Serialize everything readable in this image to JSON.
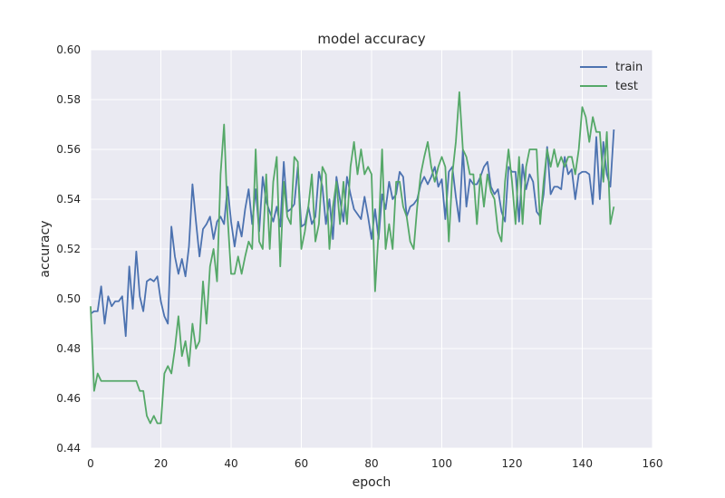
{
  "chart_data": {
    "type": "line",
    "title": "model accuracy",
    "xlabel": "epoch",
    "ylabel": "accuracy",
    "xlim": [
      0,
      160
    ],
    "ylim": [
      0.44,
      0.6
    ],
    "xticks": [
      "0",
      "20",
      "40",
      "60",
      "80",
      "100",
      "120",
      "140",
      "160"
    ],
    "yticks": [
      "0.44",
      "0.46",
      "0.48",
      "0.50",
      "0.52",
      "0.54",
      "0.56",
      "0.58",
      "0.60"
    ],
    "grid": true,
    "legend_position": "top-right",
    "background": "#eaeaf2",
    "series": [
      {
        "name": "train",
        "color": "#4c72b0",
        "values": [
          0.494,
          0.495,
          0.495,
          0.505,
          0.49,
          0.501,
          0.497,
          0.499,
          0.499,
          0.501,
          0.485,
          0.513,
          0.496,
          0.519,
          0.501,
          0.495,
          0.507,
          0.508,
          0.507,
          0.509,
          0.499,
          0.493,
          0.49,
          0.529,
          0.517,
          0.51,
          0.516,
          0.509,
          0.521,
          0.546,
          0.531,
          0.517,
          0.528,
          0.53,
          0.533,
          0.524,
          0.531,
          0.533,
          0.53,
          0.545,
          0.531,
          0.521,
          0.531,
          0.525,
          0.536,
          0.544,
          0.53,
          0.544,
          0.527,
          0.549,
          0.539,
          0.535,
          0.531,
          0.537,
          0.529,
          0.555,
          0.535,
          0.536,
          0.538,
          0.553,
          0.529,
          0.53,
          0.537,
          0.53,
          0.533,
          0.551,
          0.545,
          0.53,
          0.54,
          0.524,
          0.549,
          0.54,
          0.531,
          0.549,
          0.542,
          0.536,
          0.534,
          0.532,
          0.541,
          0.533,
          0.524,
          0.536,
          0.524,
          0.542,
          0.536,
          0.547,
          0.54,
          0.542,
          0.551,
          0.549,
          0.533,
          0.537,
          0.538,
          0.54,
          0.546,
          0.549,
          0.546,
          0.549,
          0.553,
          0.545,
          0.548,
          0.532,
          0.551,
          0.553,
          0.541,
          0.531,
          0.56,
          0.537,
          0.548,
          0.546,
          0.546,
          0.549,
          0.553,
          0.555,
          0.545,
          0.542,
          0.544,
          0.535,
          0.531,
          0.553,
          0.551,
          0.551,
          0.531,
          0.554,
          0.544,
          0.55,
          0.547,
          0.535,
          0.533,
          0.542,
          0.561,
          0.542,
          0.545,
          0.545,
          0.544,
          0.557,
          0.55,
          0.552,
          0.54,
          0.55,
          0.551,
          0.551,
          0.55,
          0.538,
          0.565,
          0.54,
          0.563,
          0.55,
          0.545,
          0.568
        ]
      },
      {
        "name": "test",
        "color": "#55a868",
        "values": [
          0.497,
          0.463,
          0.47,
          0.467,
          0.467,
          0.467,
          0.467,
          0.467,
          0.467,
          0.467,
          0.467,
          0.467,
          0.467,
          0.467,
          0.463,
          0.463,
          0.453,
          0.45,
          0.453,
          0.45,
          0.45,
          0.47,
          0.473,
          0.47,
          0.48,
          0.493,
          0.477,
          0.483,
          0.473,
          0.49,
          0.48,
          0.483,
          0.507,
          0.49,
          0.513,
          0.52,
          0.507,
          0.55,
          0.57,
          0.533,
          0.51,
          0.51,
          0.517,
          0.51,
          0.517,
          0.523,
          0.52,
          0.56,
          0.523,
          0.52,
          0.55,
          0.52,
          0.547,
          0.557,
          0.513,
          0.547,
          0.533,
          0.53,
          0.557,
          0.555,
          0.52,
          0.527,
          0.537,
          0.55,
          0.523,
          0.53,
          0.553,
          0.55,
          0.52,
          0.537,
          0.547,
          0.53,
          0.547,
          0.53,
          0.553,
          0.563,
          0.55,
          0.56,
          0.55,
          0.553,
          0.55,
          0.503,
          0.527,
          0.56,
          0.52,
          0.53,
          0.52,
          0.547,
          0.547,
          0.537,
          0.533,
          0.523,
          0.52,
          0.537,
          0.55,
          0.557,
          0.563,
          0.553,
          0.547,
          0.553,
          0.557,
          0.553,
          0.523,
          0.55,
          0.563,
          0.583,
          0.56,
          0.557,
          0.55,
          0.55,
          0.53,
          0.55,
          0.537,
          0.55,
          0.543,
          0.54,
          0.527,
          0.523,
          0.547,
          0.56,
          0.547,
          0.53,
          0.557,
          0.53,
          0.553,
          0.56,
          0.56,
          0.56,
          0.53,
          0.547,
          0.56,
          0.553,
          0.56,
          0.553,
          0.557,
          0.553,
          0.557,
          0.557,
          0.55,
          0.56,
          0.577,
          0.573,
          0.563,
          0.573,
          0.567,
          0.567,
          0.547,
          0.567,
          0.53,
          0.537
        ]
      }
    ]
  }
}
